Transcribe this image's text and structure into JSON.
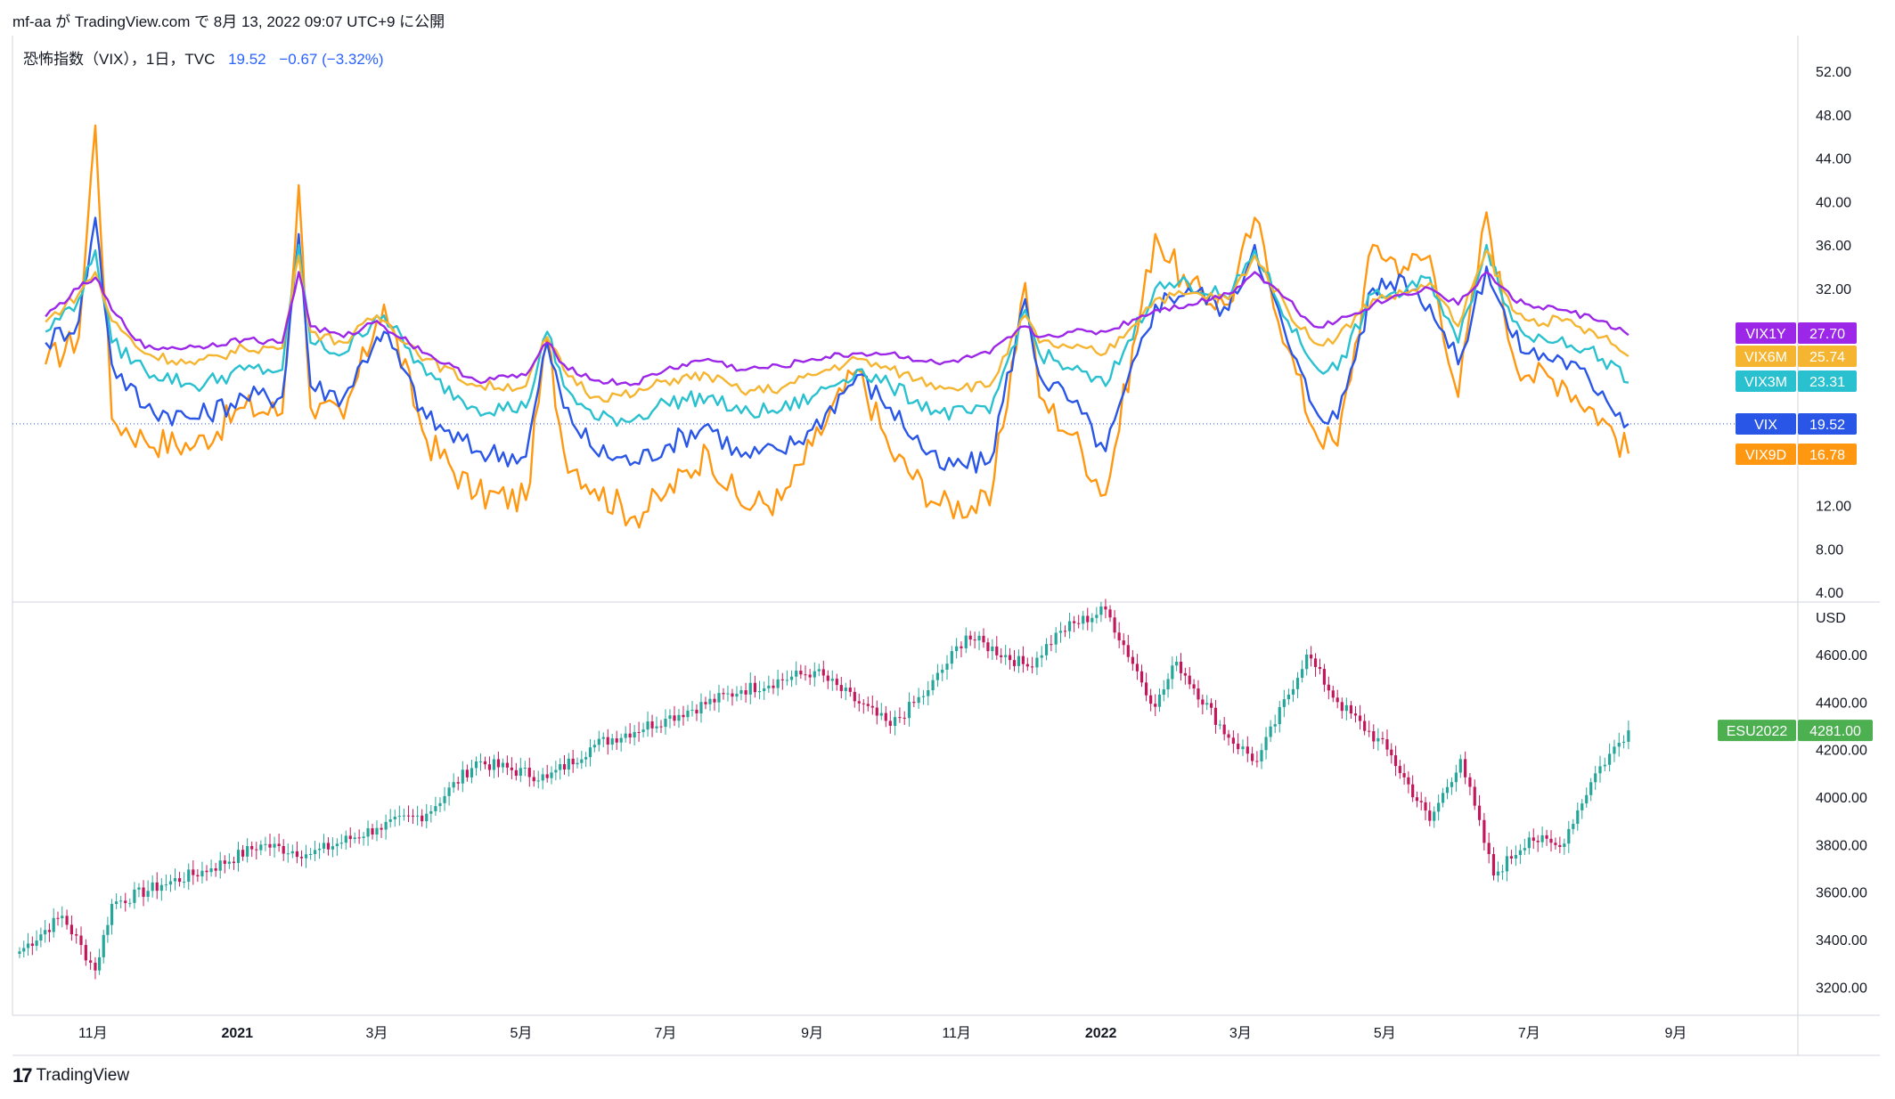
{
  "header": {
    "text": "mf-aa が TradingView.com で 8月 13, 2022 09:07 UTC+9 に公開"
  },
  "legend": {
    "symbol": "恐怖指数（VIX），1日，TVC",
    "value": "19.52",
    "change": "−0.67 (−3.32%)"
  },
  "footer": {
    "logo": "17",
    "brand": "TradingView"
  },
  "colors": {
    "VIX1Y": "#9c27e8",
    "VIX6M": "#f5b530",
    "VIX3M": "#29c1cf",
    "VIX": "#2a56e8",
    "VIX9D": "#ff9810",
    "ES_up": "#26a69a",
    "ES_down": "#c2185b",
    "ES_tag": "#4caf50"
  },
  "chart_data": [
    {
      "type": "line",
      "name": "VIX term structure",
      "x": [
        "2020-10-12",
        "2020-10-26",
        "2020-11-02",
        "2020-11-09",
        "2020-11-23",
        "2020-12-14",
        "2021-01-04",
        "2021-01-20",
        "2021-01-27",
        "2021-02-01",
        "2021-02-15",
        "2021-03-01",
        "2021-03-04",
        "2021-03-22",
        "2021-04-12",
        "2021-05-03",
        "2021-05-12",
        "2021-05-19",
        "2021-06-01",
        "2021-06-18",
        "2021-07-01",
        "2021-07-19",
        "2021-08-02",
        "2021-08-19",
        "2021-09-01",
        "2021-09-20",
        "2021-10-04",
        "2021-10-25",
        "2021-11-15",
        "2021-11-30",
        "2021-12-06",
        "2021-12-20",
        "2022-01-03",
        "2022-01-24",
        "2022-02-07",
        "2022-02-24",
        "2022-03-07",
        "2022-03-21",
        "2022-04-01",
        "2022-04-11",
        "2022-04-26",
        "2022-05-09",
        "2022-05-20",
        "2022-06-01",
        "2022-06-13",
        "2022-06-24",
        "2022-07-01",
        "2022-07-15",
        "2022-08-01",
        "2022-08-12"
      ],
      "series": [
        {
          "name": "VIX1Y",
          "last": "27.70",
          "values": [
            29.4,
            32.0,
            33.0,
            30.0,
            26.5,
            26.6,
            27.3,
            27.0,
            33.5,
            28.5,
            27.5,
            29.0,
            28.5,
            26.0,
            23.5,
            24.0,
            27.0,
            25.0,
            23.5,
            23.2,
            24.5,
            25.5,
            24.5,
            24.8,
            25.5,
            26.0,
            26.0,
            25.0,
            26.0,
            28.5,
            27.5,
            28.0,
            28.0,
            30.0,
            30.5,
            31.5,
            33.5,
            31.0,
            28.5,
            29.0,
            30.5,
            31.5,
            32.0,
            30.5,
            33.5,
            31.0,
            30.5,
            30.0,
            29.0,
            27.7
          ]
        },
        {
          "name": "VIX6M",
          "last": "25.74",
          "values": [
            28.9,
            31.5,
            33.5,
            29.0,
            26.0,
            25.0,
            26.5,
            26.5,
            35.0,
            28.0,
            27.0,
            29.5,
            29.0,
            25.5,
            23.0,
            23.0,
            27.5,
            24.5,
            22.0,
            22.2,
            23.5,
            24.0,
            22.5,
            22.8,
            24.0,
            25.5,
            24.5,
            23.0,
            23.0,
            29.5,
            27.0,
            26.5,
            26.0,
            31.0,
            31.5,
            31.0,
            35.0,
            30.0,
            27.0,
            27.5,
            31.0,
            31.5,
            32.5,
            28.5,
            35.5,
            30.0,
            29.0,
            29.0,
            27.5,
            25.74
          ]
        },
        {
          "name": "VIX3M",
          "last": "23.31",
          "values": [
            28.0,
            31.0,
            35.5,
            27.0,
            24.5,
            23.0,
            24.5,
            24.5,
            36.0,
            27.0,
            26.0,
            29.5,
            29.5,
            24.0,
            21.0,
            21.0,
            28.0,
            23.0,
            20.0,
            20.0,
            21.5,
            22.0,
            20.5,
            20.8,
            22.0,
            24.5,
            23.0,
            20.5,
            20.5,
            30.0,
            26.0,
            24.5,
            23.0,
            32.0,
            32.5,
            31.0,
            35.5,
            29.0,
            25.0,
            24.5,
            31.5,
            31.5,
            33.0,
            27.0,
            36.0,
            29.0,
            27.5,
            27.5,
            25.5,
            23.31
          ]
        },
        {
          "name": "VIX",
          "last": "19.52",
          "values": [
            27.0,
            29.0,
            38.5,
            25.0,
            21.0,
            20.0,
            22.0,
            22.0,
            37.0,
            23.0,
            22.0,
            27.5,
            28.0,
            20.0,
            17.0,
            16.5,
            27.0,
            21.0,
            17.0,
            16.0,
            17.5,
            19.5,
            16.5,
            17.0,
            19.0,
            24.0,
            21.0,
            15.5,
            16.0,
            31.0,
            24.0,
            21.5,
            17.0,
            30.5,
            32.0,
            30.0,
            36.0,
            27.0,
            21.0,
            20.0,
            32.0,
            33.0,
            30.5,
            25.0,
            34.0,
            27.5,
            26.0,
            25.5,
            22.5,
            19.52
          ]
        },
        {
          "name": "VIX9D",
          "last": "16.78",
          "values": [
            25.0,
            27.5,
            47.0,
            20.0,
            18.0,
            17.5,
            21.0,
            20.5,
            41.5,
            21.0,
            20.0,
            29.0,
            30.5,
            18.0,
            13.0,
            12.5,
            27.5,
            17.0,
            13.5,
            11.0,
            13.0,
            17.0,
            12.0,
            12.5,
            17.5,
            24.5,
            17.0,
            12.0,
            12.0,
            32.5,
            22.0,
            18.5,
            13.0,
            37.0,
            32.0,
            30.5,
            38.5,
            26.5,
            19.0,
            17.5,
            36.0,
            34.0,
            35.0,
            22.0,
            39.0,
            26.0,
            24.0,
            23.5,
            20.0,
            16.78
          ]
        }
      ],
      "yticks": [
        "52.00",
        "48.00",
        "44.00",
        "40.00",
        "36.00",
        "32.00",
        "12.00",
        "8.00",
        "4.00"
      ],
      "ylim": [
        4,
        52
      ],
      "dotted_line_at": 19.52,
      "xlabels": [
        "11月",
        "2021",
        "3月",
        "5月",
        "7月",
        "9月",
        "11月",
        "2022",
        "3月",
        "5月",
        "7月",
        "9月"
      ]
    },
    {
      "type": "candlestick",
      "name": "ESU2022",
      "last": "4281.00",
      "unit": "USD",
      "x": [
        "2020-10-01",
        "2020-10-19",
        "2020-11-02",
        "2020-11-09",
        "2020-11-30",
        "2020-12-21",
        "2021-01-11",
        "2021-02-01",
        "2021-03-01",
        "2021-03-22",
        "2021-04-12",
        "2021-05-12",
        "2021-06-01",
        "2021-07-01",
        "2021-08-02",
        "2021-09-02",
        "2021-10-04",
        "2021-10-20",
        "2021-11-05",
        "2021-12-01",
        "2021-12-15",
        "2022-01-03",
        "2022-01-24",
        "2022-02-02",
        "2022-02-24",
        "2022-03-08",
        "2022-03-29",
        "2022-04-11",
        "2022-05-02",
        "2022-05-20",
        "2022-06-02",
        "2022-06-16",
        "2022-07-01",
        "2022-07-14",
        "2022-07-29",
        "2022-08-12"
      ],
      "close": [
        3350,
        3500,
        3270,
        3550,
        3630,
        3700,
        3800,
        3760,
        3870,
        3930,
        4150,
        4080,
        4220,
        4330,
        4450,
        4530,
        4300,
        4450,
        4680,
        4550,
        4700,
        4790,
        4380,
        4570,
        4250,
        4150,
        4600,
        4400,
        4200,
        3900,
        4160,
        3670,
        3830,
        3790,
        4100,
        4281
      ],
      "yticks": [
        "4600.00",
        "4400.00",
        "4200.00",
        "4000.00",
        "3800.00",
        "3600.00",
        "3400.00",
        "3200.00"
      ],
      "ylim": [
        3100,
        4780
      ]
    }
  ]
}
